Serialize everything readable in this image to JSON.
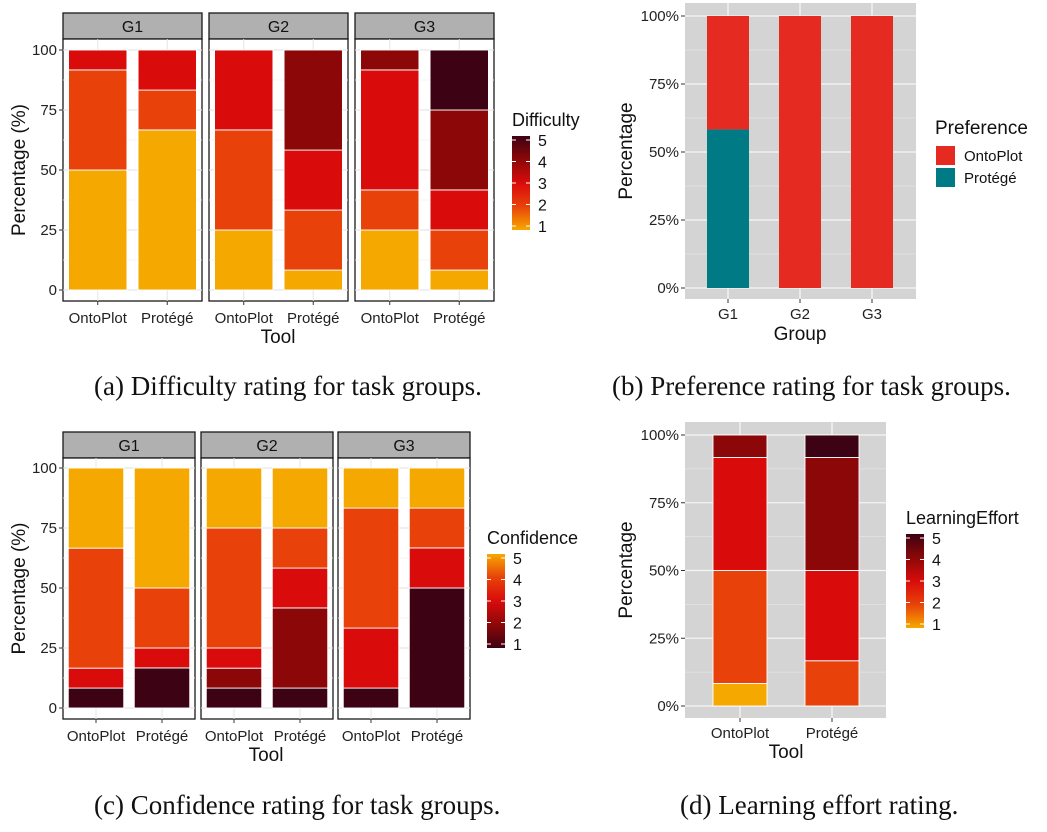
{
  "captions": {
    "a": "(a) Difficulty rating for task groups.",
    "b": "(b) Preference rating for task groups.",
    "c": "(c) Confidence rating for task groups.",
    "d": "(d) Learning effort rating."
  },
  "chart_data": [
    {
      "id": "a",
      "type": "bar",
      "stacked": true,
      "facets": [
        "G1",
        "G2",
        "G3"
      ],
      "categories": [
        "OntoPlot",
        "Protégé"
      ],
      "xlabel": "Tool",
      "ylabel": "Percentage (%)",
      "ylim": [
        0,
        100
      ],
      "yticks": [
        "0",
        "25",
        "50",
        "75",
        "100"
      ],
      "legend": {
        "title": "Difficulty",
        "levels": [
          "5",
          "4",
          "3",
          "2",
          "1"
        ],
        "placement": "right",
        "type": "colorbar"
      },
      "colors": {
        "1": "#f5a800",
        "2": "#e8420a",
        "3": "#d90b0b",
        "4": "#8c0808",
        "5": "#3d0213"
      },
      "grid": true,
      "values": {
        "G1": {
          "OntoPlot": [
            [
              1,
              50
            ],
            [
              2,
              41.7
            ],
            [
              3,
              8.3
            ]
          ],
          "Protégé": [
            [
              1,
              66.7
            ],
            [
              2,
              16.6
            ],
            [
              3,
              16.7
            ]
          ]
        },
        "G2": {
          "OntoPlot": [
            [
              1,
              25
            ],
            [
              2,
              41.7
            ],
            [
              3,
              33.3
            ]
          ],
          "Protégé": [
            [
              1,
              8.3
            ],
            [
              2,
              25
            ],
            [
              3,
              25
            ],
            [
              4,
              41.7
            ]
          ]
        },
        "G3": {
          "OntoPlot": [
            [
              1,
              25
            ],
            [
              2,
              16.7
            ],
            [
              3,
              50
            ],
            [
              4,
              8.3
            ]
          ],
          "Protégé": [
            [
              1,
              8.3
            ],
            [
              2,
              16.7
            ],
            [
              3,
              16.7
            ],
            [
              4,
              33.3
            ],
            [
              5,
              25
            ]
          ]
        }
      }
    },
    {
      "id": "b",
      "type": "bar",
      "stacked": true,
      "categories": [
        "G1",
        "G2",
        "G3"
      ],
      "xlabel": "Group",
      "ylabel": "Percentage",
      "ylim": [
        0,
        1
      ],
      "yticks": [
        "0%",
        "25%",
        "50%",
        "75%",
        "100%"
      ],
      "legend": {
        "title": "Preference",
        "entries": [
          "OntoPlot",
          "Protégé"
        ],
        "placement": "right"
      },
      "colors": {
        "OntoPlot": "#e52a22",
        "Protégé": "#007b86"
      },
      "grid": true,
      "series": [
        {
          "name": "Protégé",
          "values": [
            0.583,
            0,
            0
          ]
        },
        {
          "name": "OntoPlot",
          "values": [
            0.417,
            1,
            1
          ]
        }
      ]
    },
    {
      "id": "c",
      "type": "bar",
      "stacked": true,
      "facets": [
        "G1",
        "G2",
        "G3"
      ],
      "categories": [
        "OntoPlot",
        "Protégé"
      ],
      "xlabel": "Tool",
      "ylabel": "Percentage (%)",
      "ylim": [
        0,
        100
      ],
      "yticks": [
        "0",
        "25",
        "50",
        "75",
        "100"
      ],
      "legend": {
        "title": "Confidence",
        "levels": [
          "5",
          "4",
          "3",
          "2",
          "1"
        ],
        "placement": "right",
        "type": "colorbar"
      },
      "colors": {
        "1": "#3d0213",
        "2": "#8c0808",
        "3": "#d90b0b",
        "4": "#e8420a",
        "5": "#f5a800"
      },
      "grid": true,
      "values": {
        "G1": {
          "OntoPlot": [
            [
              1,
              8.3
            ],
            [
              3,
              8.3
            ],
            [
              4,
              50
            ],
            [
              5,
              33.4
            ]
          ],
          "Protégé": [
            [
              1,
              16.7
            ],
            [
              3,
              8.3
            ],
            [
              4,
              25
            ],
            [
              5,
              50
            ]
          ]
        },
        "G2": {
          "OntoPlot": [
            [
              1,
              8.3
            ],
            [
              2,
              8.3
            ],
            [
              3,
              8.4
            ],
            [
              4,
              50
            ],
            [
              5,
              25
            ]
          ],
          "Protégé": [
            [
              1,
              8.3
            ],
            [
              2,
              33.4
            ],
            [
              3,
              16.6
            ],
            [
              4,
              16.7
            ],
            [
              5,
              25
            ]
          ]
        },
        "G3": {
          "OntoPlot": [
            [
              1,
              8.3
            ],
            [
              3,
              25
            ],
            [
              4,
              50
            ],
            [
              5,
              16.7
            ]
          ],
          "Protégé": [
            [
              1,
              50
            ],
            [
              3,
              16.7
            ],
            [
              4,
              16.6
            ],
            [
              5,
              16.7
            ]
          ]
        }
      }
    },
    {
      "id": "d",
      "type": "bar",
      "stacked": true,
      "categories": [
        "OntoPlot",
        "Protégé"
      ],
      "xlabel": "Tool",
      "ylabel": "Percentage",
      "ylim": [
        0,
        1
      ],
      "yticks": [
        "0%",
        "25%",
        "50%",
        "75%",
        "100%"
      ],
      "legend": {
        "title": "LearningEffort",
        "levels": [
          "5",
          "4",
          "3",
          "2",
          "1"
        ],
        "placement": "right",
        "type": "colorbar"
      },
      "colors": {
        "1": "#f5a800",
        "2": "#e8420a",
        "3": "#d90b0b",
        "4": "#8c0808",
        "5": "#3d0213"
      },
      "grid": true,
      "values": {
        "OntoPlot": [
          [
            1,
            0.083
          ],
          [
            2,
            0.417
          ],
          [
            3,
            0.417
          ],
          [
            4,
            0.083
          ]
        ],
        "Protégé": [
          [
            2,
            0.167
          ],
          [
            3,
            0.333
          ],
          [
            4,
            0.417
          ],
          [
            5,
            0.083
          ]
        ]
      }
    }
  ]
}
